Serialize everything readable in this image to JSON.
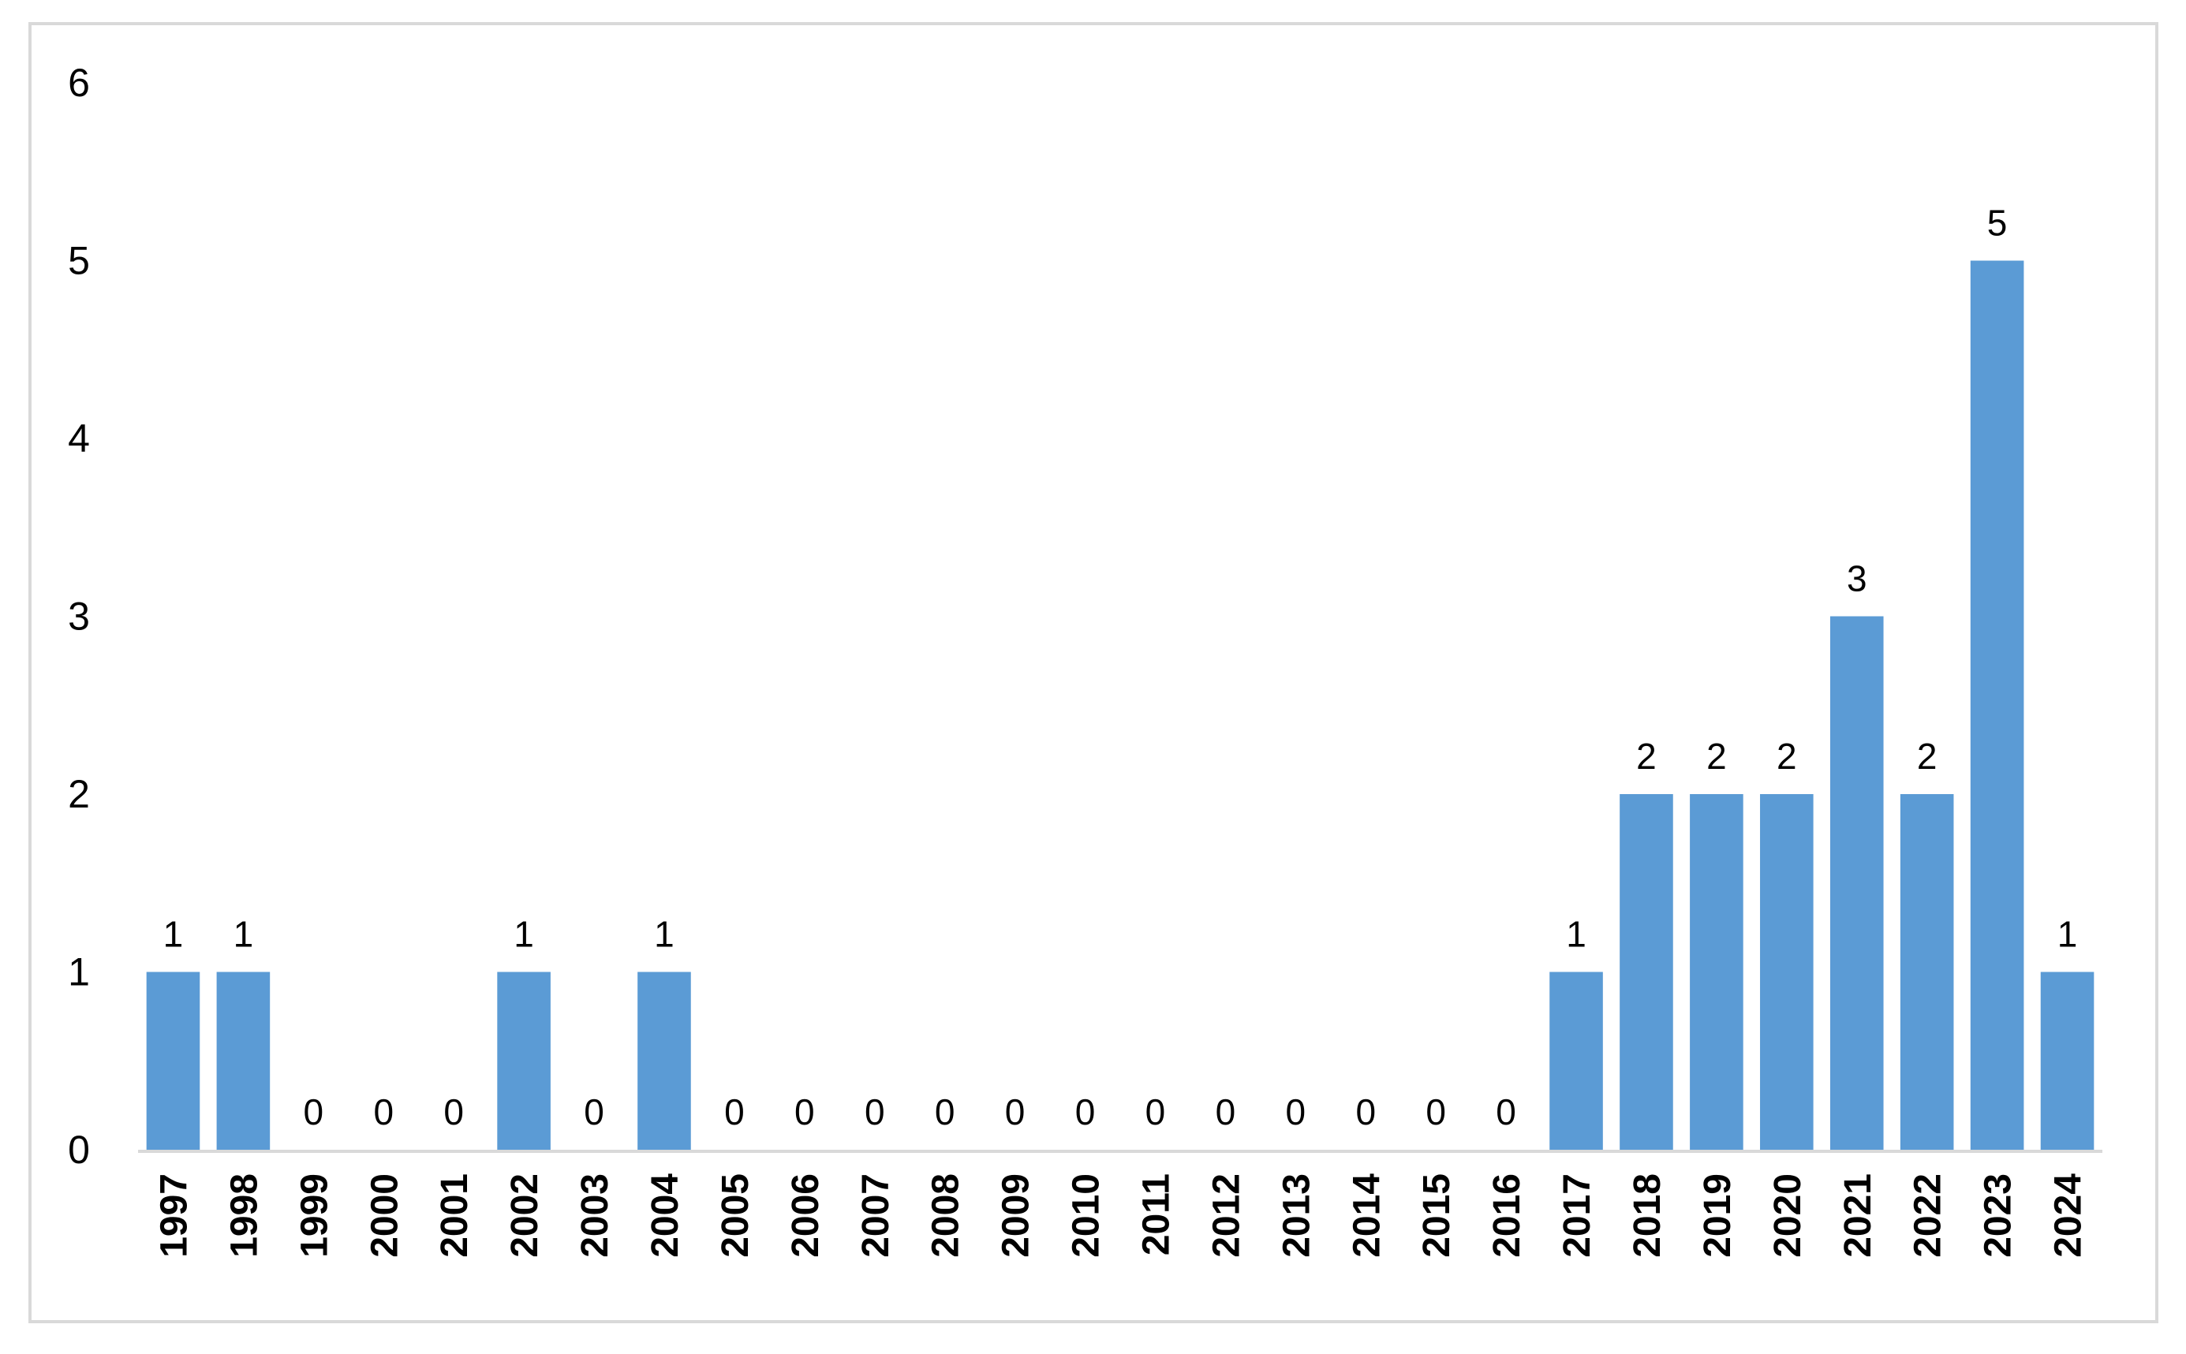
{
  "chart_data": {
    "type": "bar",
    "title": "",
    "xlabel": "",
    "ylabel": "",
    "categories": [
      "1997",
      "1998",
      "1999",
      "2000",
      "2001",
      "2002",
      "2003",
      "2004",
      "2005",
      "2006",
      "2007",
      "2008",
      "2009",
      "2010",
      "2011",
      "2012",
      "2013",
      "2014",
      "2015",
      "2016",
      "2017",
      "2018",
      "2019",
      "2020",
      "2021",
      "2022",
      "2023",
      "2024"
    ],
    "values": [
      1,
      1,
      0,
      0,
      0,
      1,
      0,
      1,
      0,
      0,
      0,
      0,
      0,
      0,
      0,
      0,
      0,
      0,
      0,
      0,
      1,
      2,
      2,
      2,
      3,
      2,
      5,
      1
    ],
    "ylim": [
      0,
      6
    ],
    "yticks": [
      "0",
      "1",
      "2",
      "3",
      "4",
      "5",
      "6"
    ],
    "data_labels": true,
    "grid": false,
    "legend": "none",
    "bar_color": "#5b9bd5",
    "axis_color": "#d9d9d9"
  }
}
